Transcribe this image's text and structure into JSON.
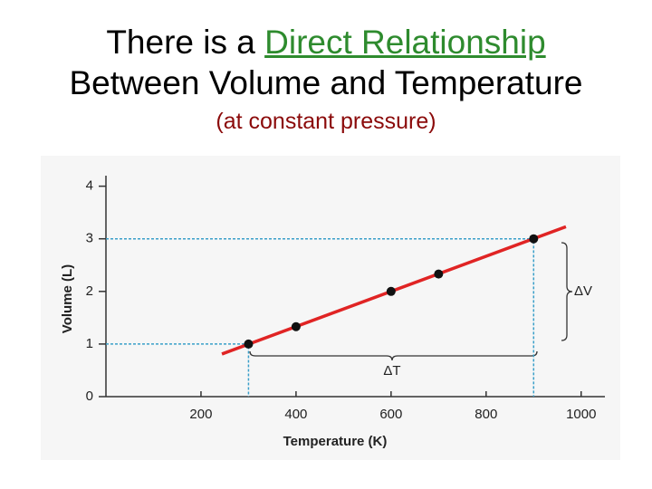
{
  "slide": {
    "title": [
      "There is a",
      "Direct Relationship",
      "Between Volume and Temperature"
    ],
    "subtitle": "(at constant pressure)"
  },
  "chart_data": {
    "type": "scatter",
    "x_label": "Temperature (K)",
    "y_label": "Volume (L)",
    "series": [
      {
        "x": [
          300,
          400,
          600,
          700,
          900
        ],
        "values": [
          1,
          1.33,
          2,
          2.33,
          3
        ],
        "color": "#111111"
      }
    ],
    "fit_line": {
      "x": [
        244,
        968
      ],
      "values": [
        0.81,
        3.23
      ],
      "color": "#e02424"
    },
    "guides": [
      {
        "x": 300,
        "y": 1
      },
      {
        "x": 900,
        "y": 3
      }
    ],
    "guide_color": "#3a9fc9",
    "annotations": [
      "ΔV",
      "ΔT"
    ],
    "xlim": [
      0,
      1050
    ],
    "ylim": [
      0,
      4.2
    ],
    "xticks": [
      200,
      400,
      600,
      800,
      1000
    ],
    "yticks": [
      0,
      1,
      2,
      3,
      4
    ]
  }
}
